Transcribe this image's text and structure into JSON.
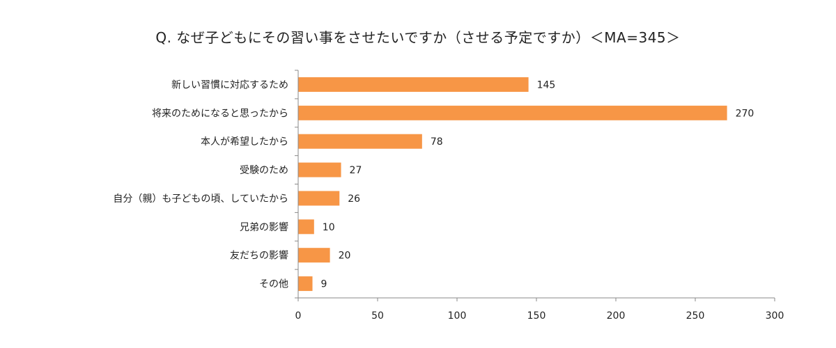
{
  "chart_data": {
    "type": "bar",
    "orientation": "horizontal",
    "title": "Q. なぜ子どもにその習い事をさせたいですか（させる予定ですか）＜MA=345＞",
    "categories": [
      "新しい習慣に対応するため",
      "将来のためになると思ったから",
      "本人が希望したから",
      "受験のため",
      "自分（親）も子どもの頃、していたから",
      "兄弟の影響",
      "友だちの影響",
      "その他"
    ],
    "values": [
      145,
      270,
      78,
      27,
      26,
      10,
      20,
      9
    ],
    "xlim": [
      0,
      300
    ],
    "xticks": [
      0,
      50,
      100,
      150,
      200,
      250,
      300
    ],
    "bar_color": "#F79646",
    "grid": false,
    "legend": "none"
  }
}
